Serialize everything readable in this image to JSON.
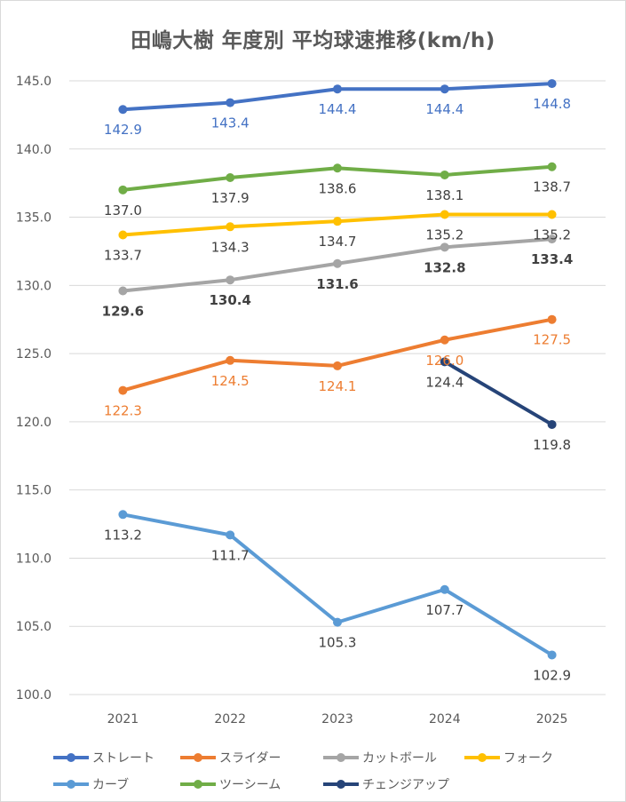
{
  "chart_data": {
    "type": "line",
    "title": "田嶋大樹 年度別 平均球速推移(km/h)",
    "xlabel": "",
    "ylabel": "",
    "categories": [
      "2021",
      "2022",
      "2023",
      "2024",
      "2025"
    ],
    "ylim": [
      100.0,
      145.0
    ],
    "yticks": [
      "100.0",
      "105.0",
      "110.0",
      "115.0",
      "120.0",
      "125.0",
      "130.0",
      "135.0",
      "140.0",
      "145.0"
    ],
    "grid": true,
    "legend_position": "bottom",
    "series": [
      {
        "name": "ストレート",
        "color": "#4472c4",
        "values": [
          142.9,
          143.4,
          144.4,
          144.4,
          144.8
        ],
        "labels": [
          "142.9",
          "143.4",
          "144.4",
          "144.4",
          "144.8"
        ],
        "label_color": "#4472c4",
        "label_pos": "below",
        "label_bold": false
      },
      {
        "name": "スライダー",
        "color": "#ed7d31",
        "values": [
          122.3,
          124.5,
          124.1,
          126.0,
          127.5
        ],
        "labels": [
          "122.3",
          "124.5",
          "124.1",
          "126.0",
          "127.5"
        ],
        "label_color": "#ed7d31",
        "label_pos": "below",
        "label_bold": false
      },
      {
        "name": "カットボール",
        "color": "#a5a5a5",
        "values": [
          129.6,
          130.4,
          131.6,
          132.8,
          133.4
        ],
        "labels": [
          "129.6",
          "130.4",
          "131.6",
          "132.8",
          "133.4"
        ],
        "label_color": "#404040",
        "label_pos": "below",
        "label_bold": true
      },
      {
        "name": "フォーク",
        "color": "#ffc000",
        "values": [
          133.7,
          134.3,
          134.7,
          135.2,
          135.2
        ],
        "labels": [
          "133.7",
          "134.3",
          "134.7",
          "135.2",
          "135.2"
        ],
        "label_color": "#404040",
        "label_pos": "below",
        "label_bold": false
      },
      {
        "name": "カーブ",
        "color": "#5b9bd5",
        "values": [
          113.2,
          111.7,
          105.3,
          107.7,
          102.9
        ],
        "labels": [
          "113.2",
          "111.7",
          "105.3",
          "107.7",
          "102.9"
        ],
        "label_color": "#404040",
        "label_pos": "below",
        "label_bold": false
      },
      {
        "name": "ツーシーム",
        "color": "#70ad47",
        "values": [
          137.0,
          137.9,
          138.6,
          138.1,
          138.7
        ],
        "labels": [
          "137.0",
          "137.9",
          "138.6",
          "138.1",
          "138.7"
        ],
        "label_color": "#404040",
        "label_pos": "below",
        "label_bold": false
      },
      {
        "name": "チェンジアップ",
        "color": "#264478",
        "values": [
          null,
          null,
          null,
          124.4,
          119.8
        ],
        "labels": [
          null,
          null,
          null,
          "124.4",
          "119.8"
        ],
        "label_color": "#404040",
        "label_pos": "below",
        "label_bold": false
      }
    ]
  }
}
